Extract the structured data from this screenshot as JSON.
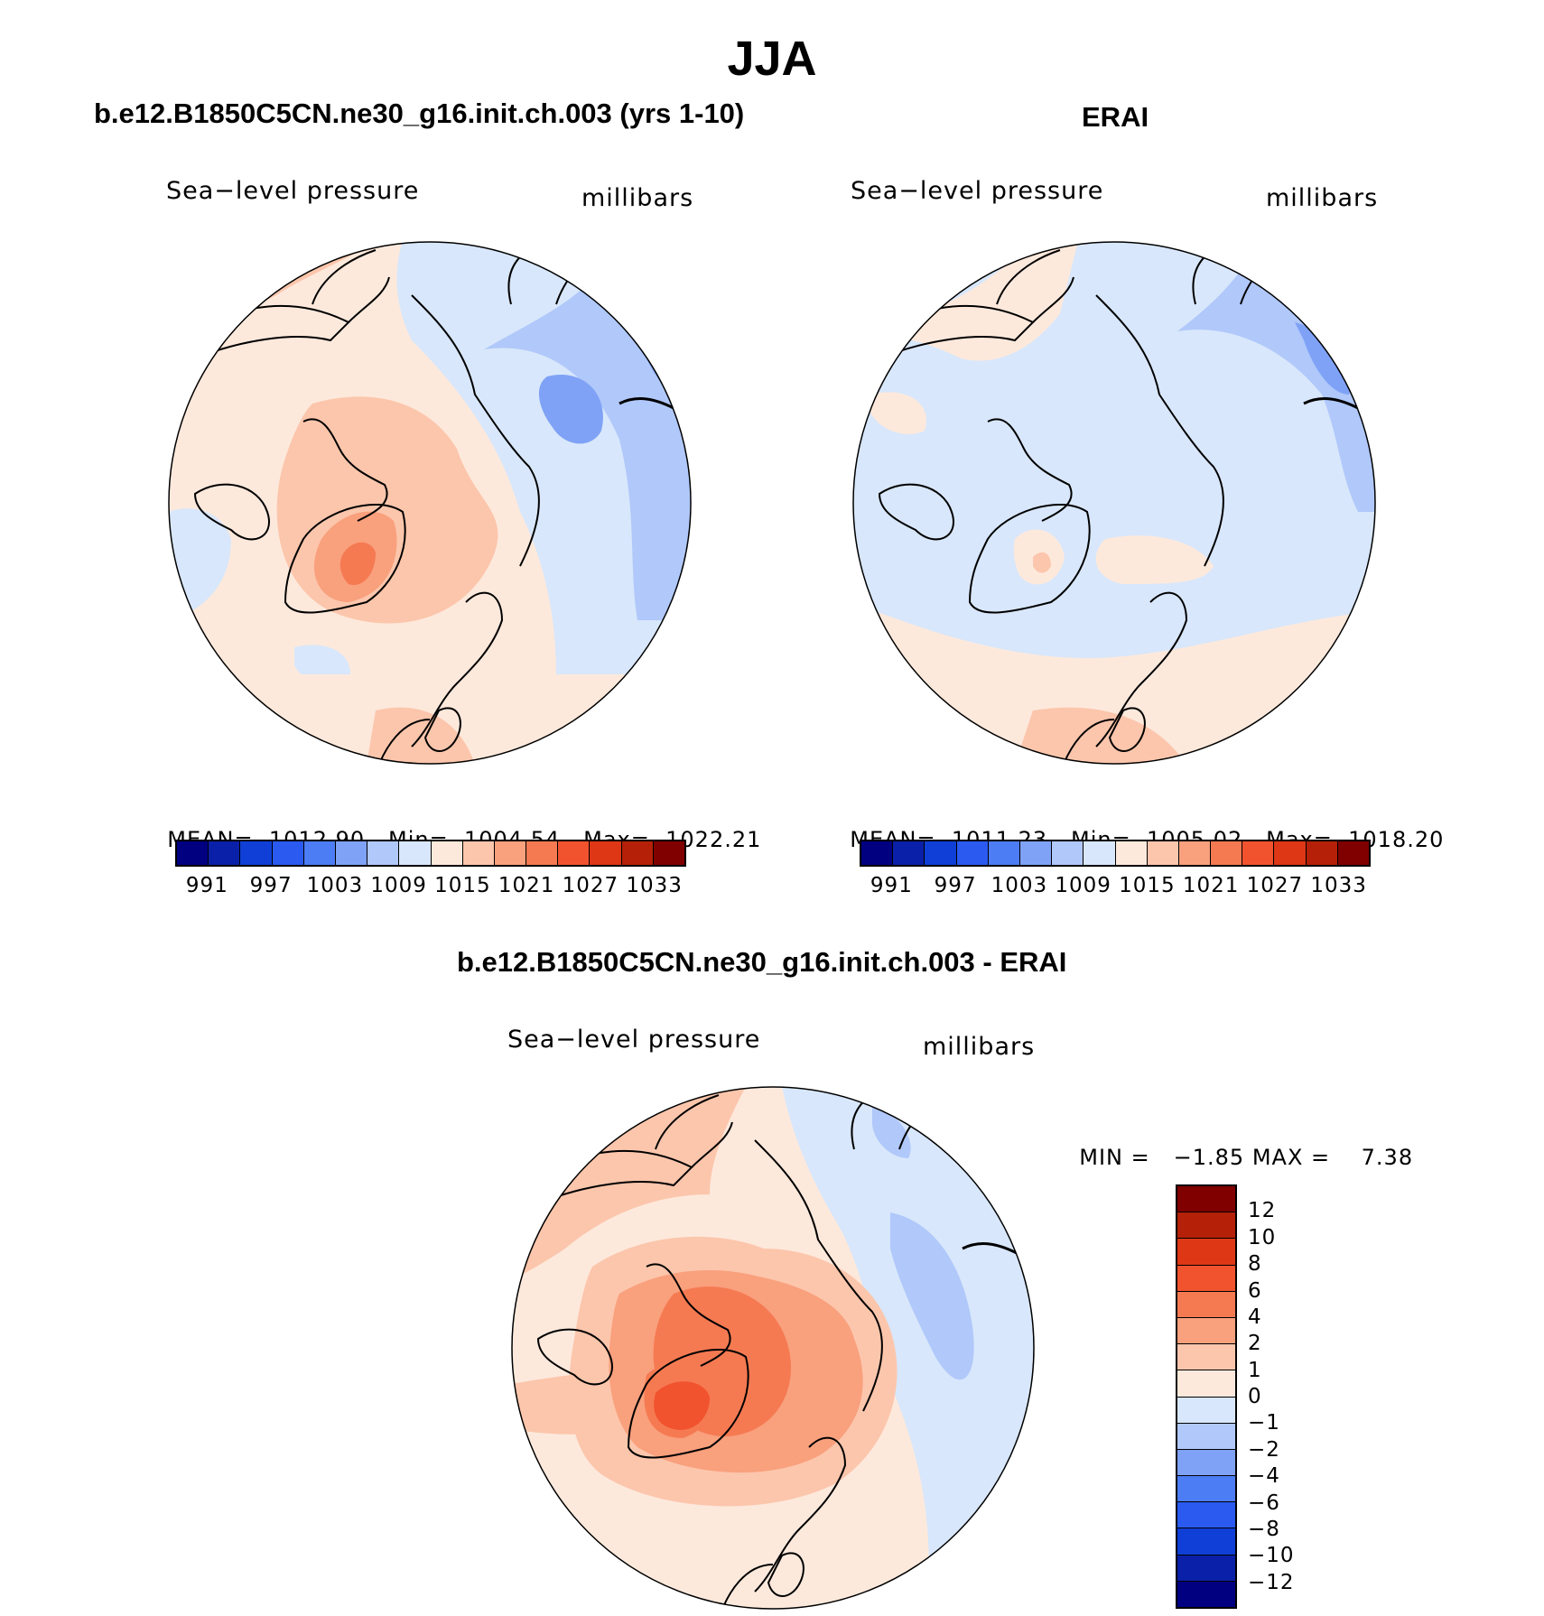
{
  "figure_title": "JJA",
  "panels": {
    "model": {
      "title": "b.e12.B1850C5CN.ne30_g16.init.ch.003 (yrs 1-10)",
      "variable": "Sea−level pressure",
      "units": "millibars",
      "mean_label": "MEAN=",
      "mean": "1012.90",
      "min_label": "Min=",
      "min": "1004.54",
      "max_label": "Max=",
      "max": "1022.21"
    },
    "obs": {
      "title": "ERAI",
      "variable": "Sea−level pressure",
      "units": "millibars",
      "mean_label": "MEAN=",
      "mean": "1011.23",
      "min_label": "Min=",
      "min": "1005.02",
      "max_label": "Max=",
      "max": "1018.20"
    },
    "diff": {
      "title": "b.e12.B1850C5CN.ne30_g16.init.ch.003 - ERAI",
      "variable": "Sea−level pressure",
      "units": "millibars",
      "min_label": "MIN =",
      "min": "−1.85",
      "max_label": "MAX =",
      "max": "7.38"
    }
  },
  "colorbar_abs": {
    "labels": [
      "991",
      "997",
      "1003",
      "1009",
      "1015",
      "1021",
      "1027",
      "1033"
    ],
    "colors": [
      "#000080",
      "#0a20a8",
      "#0f3fd6",
      "#2a5af0",
      "#4d7df4",
      "#7fa2f6",
      "#b0c8fa",
      "#d8e7fb",
      "#fde9dc",
      "#fcc6ac",
      "#f9a07d",
      "#f57a52",
      "#f1532e",
      "#dd3715",
      "#b52008",
      "#800000"
    ]
  },
  "colorbar_diff": {
    "labels": [
      "12",
      "10",
      "8",
      "6",
      "4",
      "2",
      "1",
      "0",
      "−1",
      "−2",
      "−4",
      "−6",
      "−8",
      "−10",
      "−12"
    ],
    "colors": [
      "#800000",
      "#b52008",
      "#dd3715",
      "#f1532e",
      "#f57a52",
      "#f9a07d",
      "#fcc6ac",
      "#fde9dc",
      "#d8e7fb",
      "#b0c8fa",
      "#7fa2f6",
      "#4d7df4",
      "#2a5af0",
      "#0f3fd6",
      "#0a20a8",
      "#000080"
    ]
  }
}
